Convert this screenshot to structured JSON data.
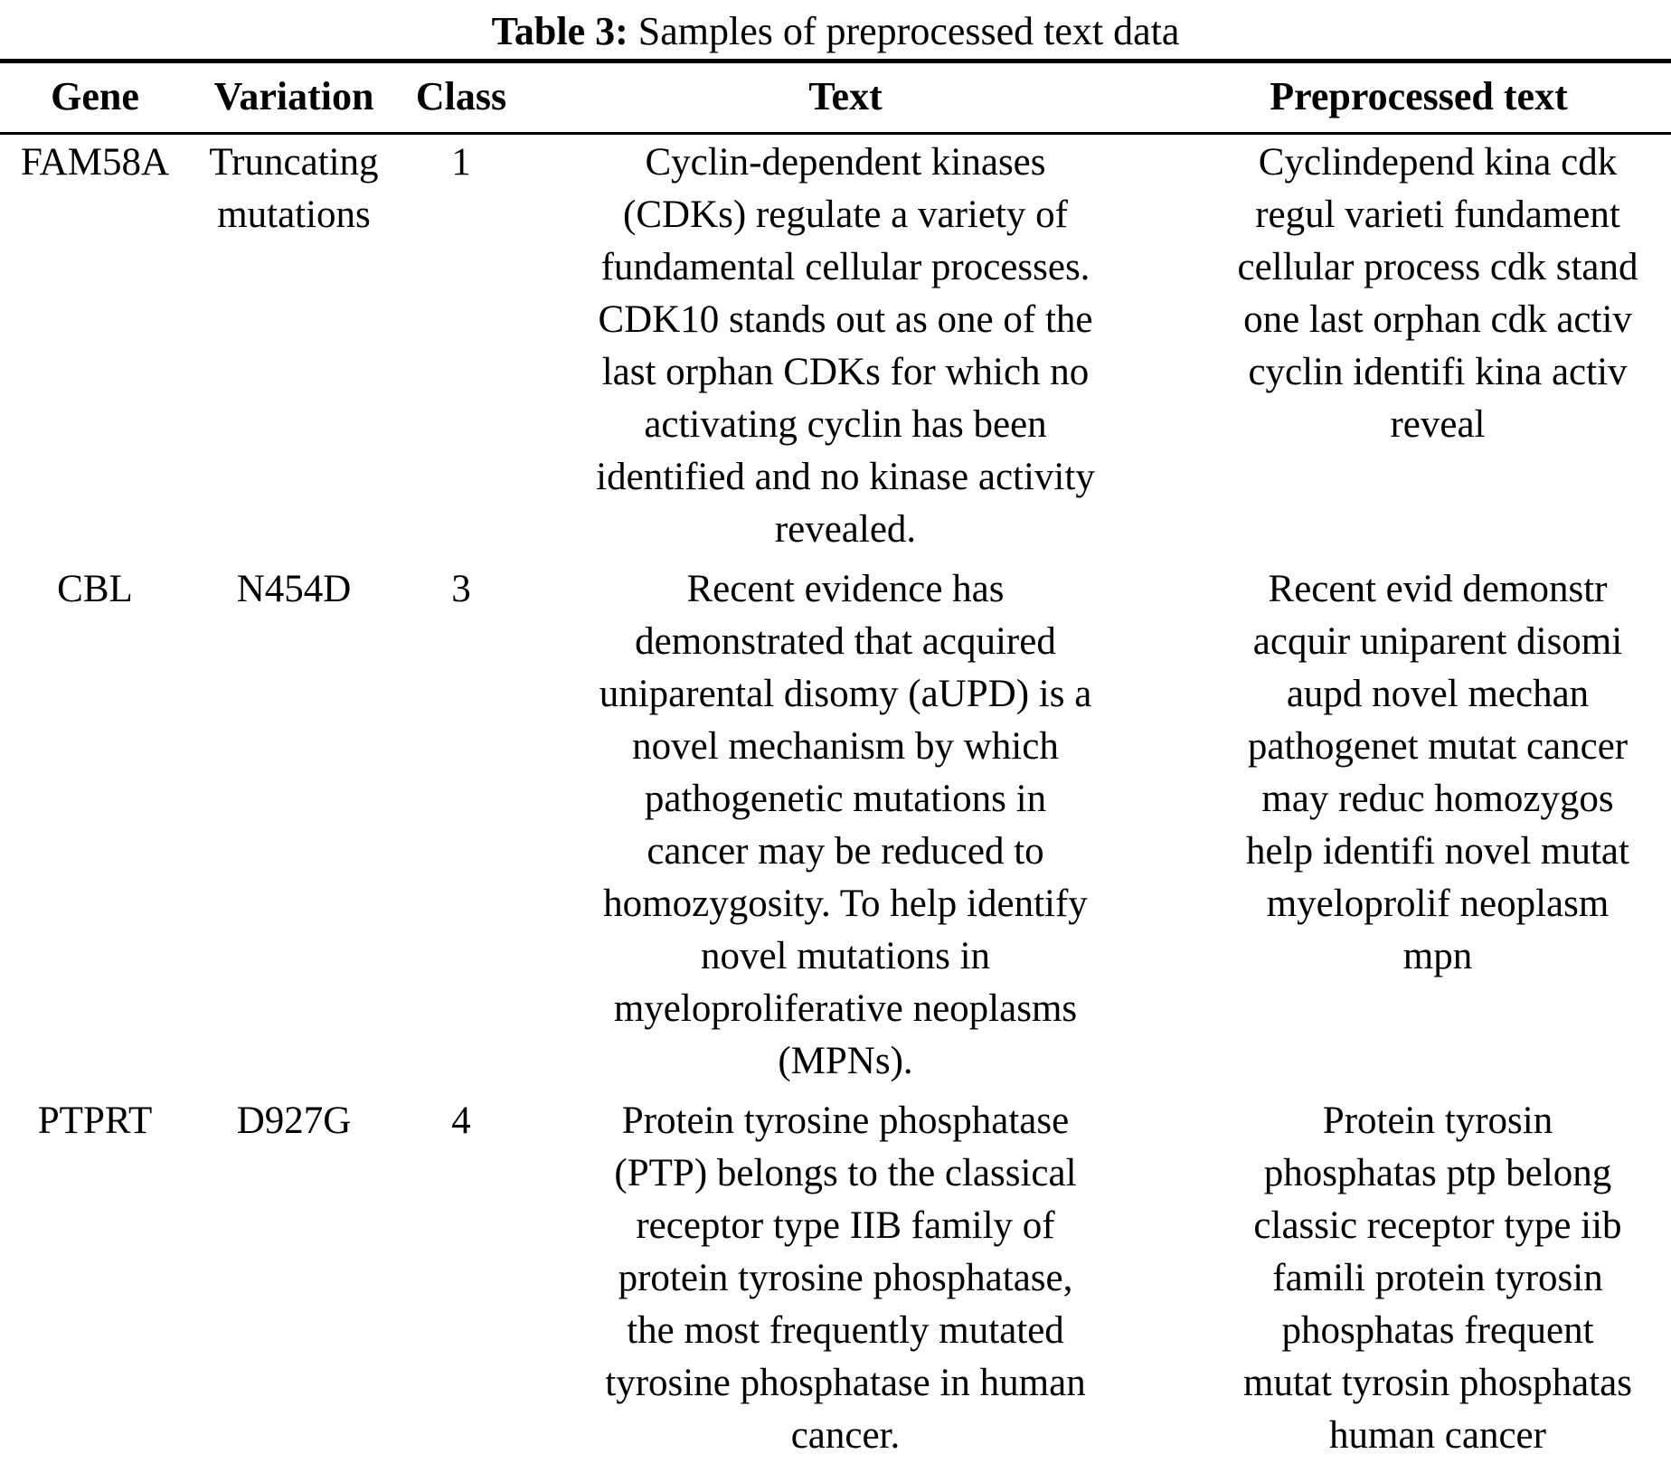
{
  "caption": {
    "label": "Table 3:",
    "text": " Samples of preprocessed text data"
  },
  "table": {
    "headers": {
      "gene": "Gene",
      "variation": "Variation",
      "class": "Class",
      "text": "Text",
      "preprocessed": "Preprocessed text"
    },
    "rows": [
      {
        "gene": "FAM58A",
        "variation": "Truncating\nmutations",
        "class": "1",
        "text": "Cyclin-dependent kinases\n(CDKs) regulate a variety of\nfundamental cellular processes.\nCDK10 stands out as one of the\nlast orphan CDKs for which no\nactivating cyclin has been\nidentified and no kinase activity\nrevealed.",
        "preprocessed": "Cyclindepend kina cdk\nregul varieti fundament\ncellular process cdk stand\none last orphan cdk activ\ncyclin identifi kina activ\nreveal"
      },
      {
        "gene": "CBL",
        "variation": "N454D",
        "class": "3",
        "text": "Recent evidence has\ndemonstrated that acquired\nuniparental disomy (aUPD) is a\nnovel mechanism by which\npathogenetic mutations in\ncancer may be reduced to\nhomozygosity. To help identify\nnovel mutations in\nmyeloproliferative neoplasms\n(MPNs).",
        "preprocessed": "Recent evid demonstr\nacquir uniparent disomi\naupd novel mechan\npathogenet mutat cancer\nmay reduc homozygos\nhelp identifi novel mutat\nmyeloprolif neoplasm\nmpn"
      },
      {
        "gene": "PTPRT",
        "variation": "D927G",
        "class": "4",
        "text": "Protein tyrosine phosphatase\n(PTP) belongs to the classical\nreceptor type IIB family of\nprotein tyrosine phosphatase,\nthe most frequently mutated\ntyrosine phosphatase in human\ncancer.",
        "preprocessed": "Protein tyrosin\nphosphatas ptp belong\nclassic receptor type iib\nfamili protein tyrosin\nphosphatas frequent\nmutat tyrosin phosphatas\nhuman cancer"
      }
    ]
  }
}
